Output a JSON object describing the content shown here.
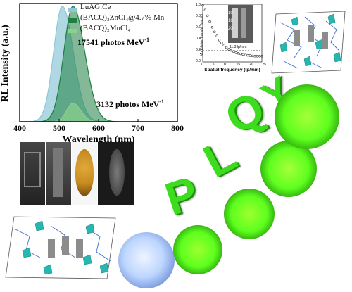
{
  "chart_data": [
    {
      "type": "area",
      "title": "",
      "xlabel": "Wavelength (nm)",
      "ylabel": "RL Intensity (a.u.)",
      "xlim": [
        400,
        800
      ],
      "xticks": [
        "400",
        "500",
        "600",
        "700",
        "800"
      ],
      "yticks": [],
      "legend_placement": "top",
      "series": [
        {
          "name": "LuAG:Ce",
          "color": "#8fc7d6",
          "peak_x": 508,
          "peak_y": 1.0,
          "sigma_left": 22,
          "sigma_right": 28
        },
        {
          "name": "(BACQ)₂ZnCl₄@4.7% Mn",
          "color": "#1e7f3f",
          "peak_x": 535,
          "peak_y": 1.0,
          "sigma_left": 23,
          "sigma_right": 30
        },
        {
          "name": "(BACQ)₂MnCl₄",
          "color": "#8bd08b",
          "peak_x": 535,
          "peak_y": 0.16,
          "sigma_left": 16,
          "sigma_right": 20
        }
      ],
      "annotations": [
        {
          "text": "17541 photos MeV",
          "sup": "-1"
        },
        {
          "text": "3132 photos MeV",
          "sup": "-1"
        }
      ]
    },
    {
      "type": "scatter",
      "title": "",
      "xlabel": "Spatial frequency (lp/mm)",
      "ylabel": "Modulation transfer function",
      "xlim": [
        0,
        25
      ],
      "ylim": [
        0,
        1.0
      ],
      "xticks": [
        "0",
        "5",
        "10",
        "15",
        "20",
        "25"
      ],
      "yticks": [
        "0.0",
        "0.2",
        "0.4",
        "0.6",
        "0.8",
        "1.0"
      ],
      "reference_line_y": 0.2,
      "series": [
        {
          "name": "",
          "color": "#333333",
          "x": [
            0,
            1,
            2,
            3,
            4,
            5,
            6,
            7,
            8,
            9,
            10,
            11,
            12,
            13,
            14,
            15,
            16,
            17,
            18,
            19,
            20,
            21,
            22,
            23,
            24,
            25
          ],
          "values": [
            0.98,
            0.9,
            0.8,
            0.7,
            0.6,
            0.52,
            0.45,
            0.38,
            0.33,
            0.29,
            0.25,
            0.22,
            0.2,
            0.18,
            0.16,
            0.15,
            0.14,
            0.13,
            0.12,
            0.115,
            0.11,
            0.105,
            0.1,
            0.1,
            0.1,
            0.1
          ]
        }
      ],
      "inset_label": "11.3 lp/mm",
      "inset_ticks": [
        "10",
        "16",
        "20"
      ]
    }
  ],
  "plq_letters": [
    "P",
    "L",
    "Q",
    "Y"
  ],
  "colors": {
    "glow_green": "#5dff1e",
    "disc_blue": "#bcd6ff",
    "crystal_teal": "#26b7b0",
    "beetle_gold": "#c68a1f"
  }
}
